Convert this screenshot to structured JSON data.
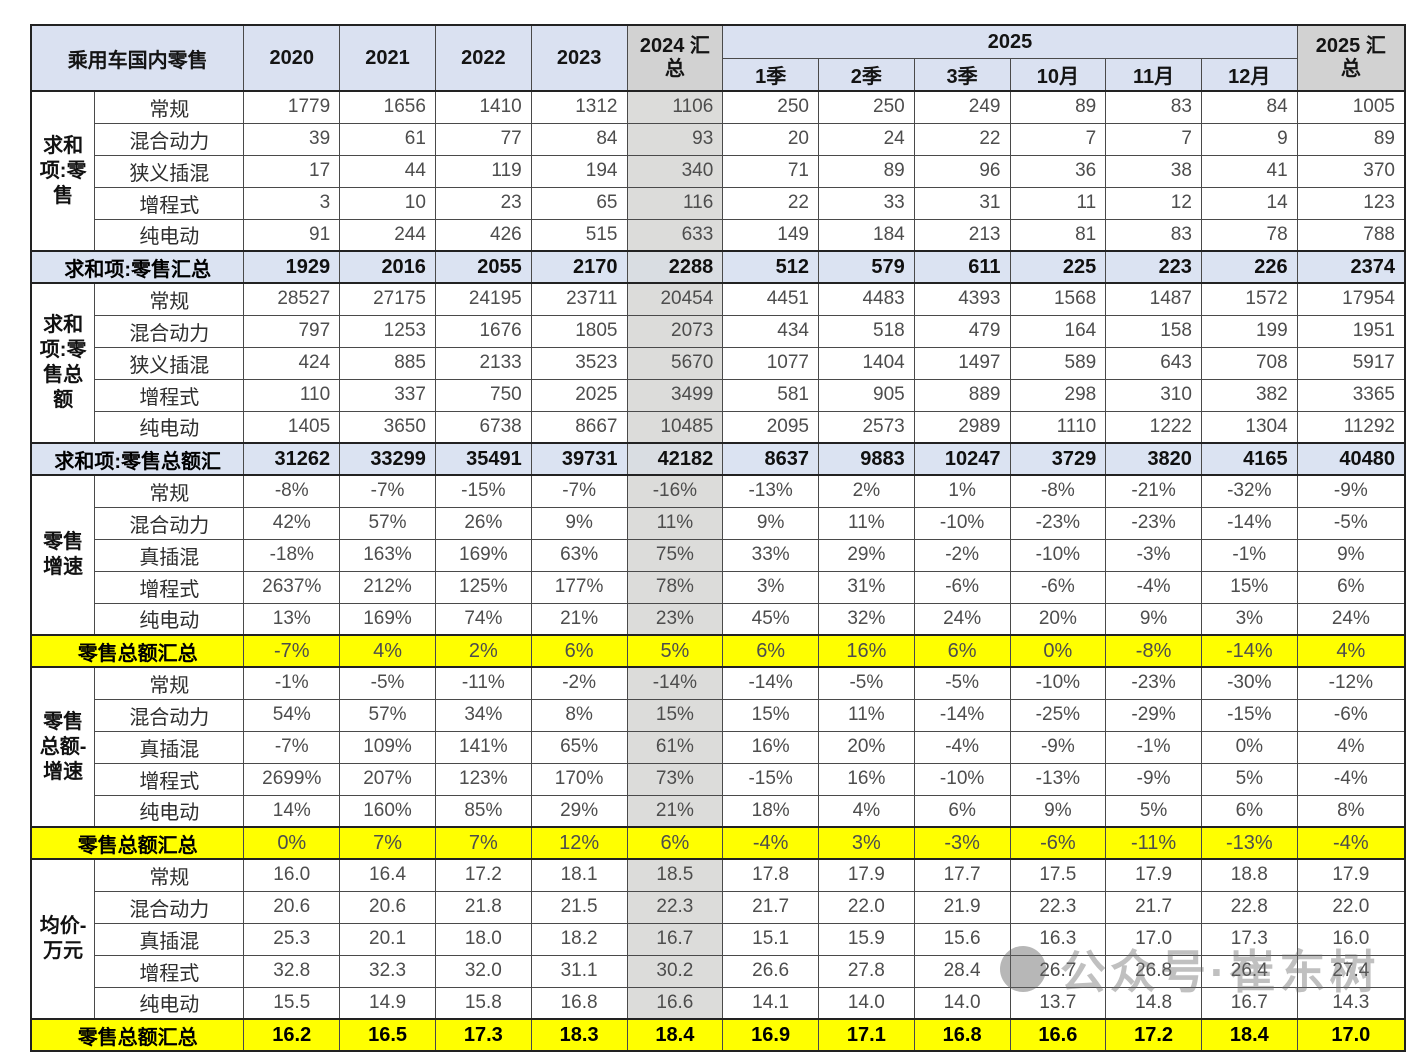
{
  "header": {
    "corner": "乘用车国内零售",
    "years": [
      "2020",
      "2021",
      "2022",
      "2023"
    ],
    "y2024_total": "2024 汇\n总",
    "y2025_group": "2025",
    "y2025_subs": [
      "1季",
      "2季",
      "3季",
      "10月",
      "11月",
      "12月"
    ],
    "y2025_total": "2025 汇\n总"
  },
  "chart_data": {
    "type": "table",
    "title": "乘用车国内零售",
    "columns": [
      "2020",
      "2021",
      "2022",
      "2023",
      "2024汇总",
      "2025-1季",
      "2025-2季",
      "2025-3季",
      "2025-10月",
      "2025-11月",
      "2025-12月",
      "2025汇总"
    ],
    "blocks_note": "5 row-groups each with 5 category rows plus one summary row"
  },
  "blocks": [
    {
      "group_label": "求和\n项:零\n售",
      "align": "right",
      "rows": [
        {
          "label": "常规",
          "values": [
            "1779",
            "1656",
            "1410",
            "1312",
            "1106",
            "250",
            "250",
            "249",
            "89",
            "83",
            "84",
            "1005"
          ]
        },
        {
          "label": "混合动力",
          "values": [
            "39",
            "61",
            "77",
            "84",
            "93",
            "20",
            "24",
            "22",
            "7",
            "7",
            "9",
            "89"
          ]
        },
        {
          "label": "狭义插混",
          "values": [
            "17",
            "44",
            "119",
            "194",
            "340",
            "71",
            "89",
            "96",
            "36",
            "38",
            "41",
            "370"
          ]
        },
        {
          "label": "增程式",
          "values": [
            "3",
            "10",
            "23",
            "65",
            "116",
            "22",
            "33",
            "31",
            "11",
            "12",
            "14",
            "123"
          ]
        },
        {
          "label": "纯电动",
          "values": [
            "91",
            "244",
            "426",
            "515",
            "633",
            "149",
            "184",
            "213",
            "81",
            "83",
            "78",
            "788"
          ]
        }
      ],
      "total": {
        "label": "求和项:零售汇总",
        "style": "blue",
        "bold": true,
        "values": [
          "1929",
          "2016",
          "2055",
          "2170",
          "2288",
          "512",
          "579",
          "611",
          "225",
          "223",
          "226",
          "2374"
        ]
      }
    },
    {
      "group_label": "求和\n项:零\n售总\n额",
      "align": "right",
      "rows": [
        {
          "label": "常规",
          "values": [
            "28527",
            "27175",
            "24195",
            "23711",
            "20454",
            "4451",
            "4483",
            "4393",
            "1568",
            "1487",
            "1572",
            "17954"
          ]
        },
        {
          "label": "混合动力",
          "values": [
            "797",
            "1253",
            "1676",
            "1805",
            "2073",
            "434",
            "518",
            "479",
            "164",
            "158",
            "199",
            "1951"
          ]
        },
        {
          "label": "狭义插混",
          "values": [
            "424",
            "885",
            "2133",
            "3523",
            "5670",
            "1077",
            "1404",
            "1497",
            "589",
            "643",
            "708",
            "5917"
          ]
        },
        {
          "label": "增程式",
          "values": [
            "110",
            "337",
            "750",
            "2025",
            "3499",
            "581",
            "905",
            "889",
            "298",
            "310",
            "382",
            "3365"
          ]
        },
        {
          "label": "纯电动",
          "values": [
            "1405",
            "3650",
            "6738",
            "8667",
            "10485",
            "2095",
            "2573",
            "2989",
            "1110",
            "1222",
            "1304",
            "11292"
          ]
        }
      ],
      "total": {
        "label": "求和项:零售总额汇",
        "style": "blue",
        "bold": true,
        "values": [
          "31262",
          "33299",
          "35491",
          "39731",
          "42182",
          "8637",
          "9883",
          "10247",
          "3729",
          "3820",
          "4165",
          "40480"
        ]
      }
    },
    {
      "group_label": "零售\n增速",
      "align": "center",
      "rows": [
        {
          "label": "常规",
          "values": [
            "-8%",
            "-7%",
            "-15%",
            "-7%",
            "-16%",
            "-13%",
            "2%",
            "1%",
            "-8%",
            "-21%",
            "-32%",
            "-9%"
          ]
        },
        {
          "label": "混合动力",
          "values": [
            "42%",
            "57%",
            "26%",
            "9%",
            "11%",
            "9%",
            "11%",
            "-10%",
            "-23%",
            "-23%",
            "-14%",
            "-5%"
          ]
        },
        {
          "label": "真插混",
          "values": [
            "-18%",
            "163%",
            "169%",
            "63%",
            "75%",
            "33%",
            "29%",
            "-2%",
            "-10%",
            "-3%",
            "-1%",
            "9%"
          ]
        },
        {
          "label": "增程式",
          "values": [
            "2637%",
            "212%",
            "125%",
            "177%",
            "78%",
            "3%",
            "31%",
            "-6%",
            "-6%",
            "-4%",
            "15%",
            "6%"
          ]
        },
        {
          "label": "纯电动",
          "values": [
            "13%",
            "169%",
            "74%",
            "21%",
            "23%",
            "45%",
            "32%",
            "24%",
            "20%",
            "9%",
            "3%",
            "24%"
          ]
        }
      ],
      "total": {
        "label": "零售总额汇总",
        "style": "yellow",
        "bold": false,
        "values": [
          "-7%",
          "4%",
          "2%",
          "6%",
          "5%",
          "6%",
          "16%",
          "6%",
          "0%",
          "-8%",
          "-14%",
          "4%"
        ]
      }
    },
    {
      "group_label": "零售\n总额-\n增速",
      "align": "center",
      "rows": [
        {
          "label": "常规",
          "values": [
            "-1%",
            "-5%",
            "-11%",
            "-2%",
            "-14%",
            "-14%",
            "-5%",
            "-5%",
            "-10%",
            "-23%",
            "-30%",
            "-12%"
          ]
        },
        {
          "label": "混合动力",
          "values": [
            "54%",
            "57%",
            "34%",
            "8%",
            "15%",
            "15%",
            "11%",
            "-14%",
            "-25%",
            "-29%",
            "-15%",
            "-6%"
          ]
        },
        {
          "label": "真插混",
          "values": [
            "-7%",
            "109%",
            "141%",
            "65%",
            "61%",
            "16%",
            "20%",
            "-4%",
            "-9%",
            "-1%",
            "0%",
            "4%"
          ]
        },
        {
          "label": "增程式",
          "values": [
            "2699%",
            "207%",
            "123%",
            "170%",
            "73%",
            "-15%",
            "16%",
            "-10%",
            "-13%",
            "-9%",
            "5%",
            "-4%"
          ]
        },
        {
          "label": "纯电动",
          "values": [
            "14%",
            "160%",
            "85%",
            "29%",
            "21%",
            "18%",
            "4%",
            "6%",
            "9%",
            "5%",
            "6%",
            "8%"
          ]
        }
      ],
      "total": {
        "label": "零售总额汇总",
        "style": "yellow",
        "bold": false,
        "values": [
          "0%",
          "7%",
          "7%",
          "12%",
          "6%",
          "-4%",
          "3%",
          "-3%",
          "-6%",
          "-11%",
          "-13%",
          "-4%"
        ]
      }
    },
    {
      "group_label": "均价-\n万元",
      "align": "center",
      "rows": [
        {
          "label": "常规",
          "values": [
            "16.0",
            "16.4",
            "17.2",
            "18.1",
            "18.5",
            "17.8",
            "17.9",
            "17.7",
            "17.5",
            "17.9",
            "18.8",
            "17.9"
          ]
        },
        {
          "label": "混合动力",
          "values": [
            "20.6",
            "20.6",
            "21.8",
            "21.5",
            "22.3",
            "21.7",
            "22.0",
            "21.9",
            "22.3",
            "21.7",
            "22.8",
            "22.0"
          ]
        },
        {
          "label": "真插混",
          "values": [
            "25.3",
            "20.1",
            "18.0",
            "18.2",
            "16.7",
            "15.1",
            "15.9",
            "15.6",
            "16.3",
            "17.0",
            "17.3",
            "16.0"
          ]
        },
        {
          "label": "增程式",
          "values": [
            "32.8",
            "32.3",
            "32.0",
            "31.1",
            "30.2",
            "26.6",
            "27.8",
            "28.4",
            "26.7",
            "26.8",
            "26.4",
            "27.4"
          ]
        },
        {
          "label": "纯电动",
          "values": [
            "15.5",
            "14.9",
            "15.8",
            "16.8",
            "16.6",
            "14.1",
            "14.0",
            "14.0",
            "13.7",
            "14.8",
            "16.7",
            "14.3"
          ]
        }
      ],
      "total": {
        "label": "零售总额汇总",
        "style": "yellow",
        "bold": true,
        "values": [
          "16.2",
          "16.5",
          "17.3",
          "18.3",
          "18.4",
          "16.9",
          "17.1",
          "16.8",
          "16.6",
          "17.2",
          "18.4",
          "17.0"
        ]
      }
    }
  ],
  "watermark": {
    "text": "公众号·崔东树",
    "icon": "wechat-account-logo"
  },
  "colors": {
    "header_blue": "#dae1f1",
    "total_row_blue": "#dbe3f2",
    "summary_header_gray": "#d2d2d2",
    "col2024_gray": "#dcdcda",
    "highlight_yellow": "#ffff00",
    "border": "#4a4a4a"
  }
}
